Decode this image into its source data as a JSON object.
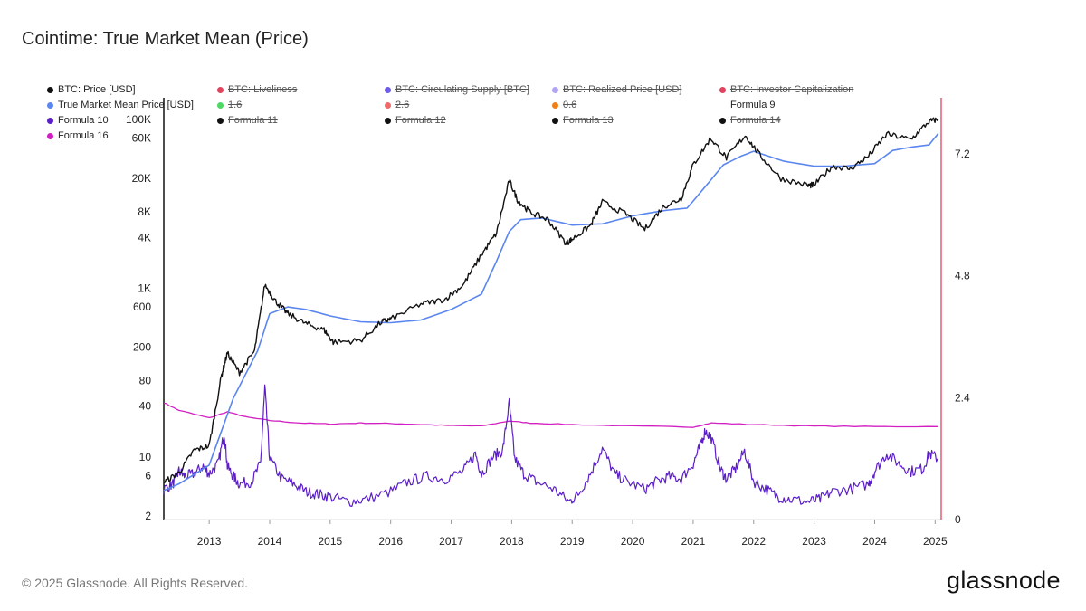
{
  "title": "Cointime: True Market Mean (Price)",
  "footer": {
    "copyright": "© 2025 Glassnode. All Rights Reserved.",
    "brand": "glassnode"
  },
  "legend": [
    {
      "label": "BTC: Price [USD]",
      "color": "#111111",
      "active": true
    },
    {
      "label": "BTC: Liveliness",
      "color": "#e0445e",
      "active": false
    },
    {
      "label": "BTC: Circulating Supply [BTC]",
      "color": "#6d5ce8",
      "active": false
    },
    {
      "label": "BTC: Realized Price [USD]",
      "color": "#b0a4f5",
      "active": false
    },
    {
      "label": "BTC: Investor Capitalization",
      "color": "#e0445e",
      "active": false
    },
    {
      "label": "True Market Mean Price [USD]",
      "color": "#5b86f0",
      "active": true
    },
    {
      "label": "1.6",
      "color": "#4cd964",
      "active": false
    },
    {
      "label": "2.6",
      "color": "#ef6b6b",
      "active": false
    },
    {
      "label": "0.6",
      "color": "#f07f1a",
      "active": false
    },
    {
      "label": "Formula 9",
      "color": "#ffffff",
      "active": true
    },
    {
      "label": "Formula 10",
      "color": "#5b1ec8",
      "active": true
    },
    {
      "label": "Formula 11",
      "color": "#111111",
      "active": false
    },
    {
      "label": "Formula 12",
      "color": "#111111",
      "active": false
    },
    {
      "label": "Formula 13",
      "color": "#111111",
      "active": false
    },
    {
      "label": "Formula 14",
      "color": "#111111",
      "active": false
    },
    {
      "label": "Formula 16",
      "color": "#d21fc2",
      "active": true
    }
  ],
  "chart_data": {
    "type": "line",
    "y_left": {
      "scale": "log",
      "ticks": [
        "2",
        "6",
        "10",
        "40",
        "80",
        "200",
        "600",
        "1K",
        "4K",
        "8K",
        "20K",
        "60K",
        "100K"
      ]
    },
    "y_right": {
      "scale": "linear",
      "ticks": [
        "0",
        "2.4",
        "4.8",
        "7.2"
      ],
      "range": [
        0,
        8.3
      ]
    },
    "x_ticks": [
      "2013",
      "2014",
      "2015",
      "2016",
      "2017",
      "2018",
      "2019",
      "2020",
      "2021",
      "2022",
      "2023",
      "2024",
      "2025"
    ],
    "x_range": [
      2012.25,
      2025.1
    ],
    "grid": false,
    "series": [
      {
        "name": "BTC: Price [USD]",
        "axis": "left",
        "color": "#111111",
        "x": [
          2012.25,
          2012.5,
          2012.75,
          2013.0,
          2013.2,
          2013.3,
          2013.5,
          2013.75,
          2013.92,
          2014.1,
          2014.3,
          2014.6,
          2014.9,
          2015.05,
          2015.5,
          2015.85,
          2016.0,
          2016.5,
          2016.9,
          2017.2,
          2017.5,
          2017.75,
          2017.96,
          2018.1,
          2018.3,
          2018.6,
          2018.9,
          2019.0,
          2019.3,
          2019.5,
          2019.9,
          2020.2,
          2020.5,
          2020.8,
          2021.0,
          2021.29,
          2021.55,
          2021.86,
          2022.1,
          2022.45,
          2022.9,
          2023.0,
          2023.3,
          2023.6,
          2023.9,
          2024.2,
          2024.6,
          2024.9,
          2025.05
        ],
        "y": [
          5,
          6.5,
          12,
          13.5,
          90,
          170,
          100,
          180,
          1100,
          700,
          500,
          380,
          320,
          230,
          240,
          400,
          430,
          650,
          740,
          1100,
          2500,
          4500,
          19000,
          11000,
          8000,
          6500,
          3400,
          3800,
          5500,
          10500,
          7500,
          5000,
          9200,
          11500,
          29000,
          60000,
          35000,
          65000,
          38000,
          20000,
          16500,
          16800,
          28000,
          26000,
          37000,
          67000,
          58000,
          95000,
          100000
        ]
      },
      {
        "name": "True Market Mean Price [USD]",
        "axis": "left",
        "color": "#5b86f0",
        "x": [
          2012.25,
          2012.5,
          2013.0,
          2013.4,
          2013.8,
          2014.0,
          2014.3,
          2014.6,
          2015.0,
          2015.5,
          2016.0,
          2016.5,
          2017.0,
          2017.5,
          2017.75,
          2017.96,
          2018.15,
          2018.5,
          2019.0,
          2019.5,
          2020.0,
          2020.5,
          2020.9,
          2021.2,
          2021.5,
          2021.8,
          2022.0,
          2022.5,
          2023.0,
          2023.5,
          2024.0,
          2024.3,
          2024.6,
          2024.9,
          2025.05
        ],
        "y": [
          4,
          4.8,
          8,
          50,
          180,
          500,
          600,
          560,
          470,
          400,
          390,
          420,
          560,
          850,
          2100,
          4700,
          6500,
          6800,
          5600,
          5800,
          7200,
          8300,
          8900,
          16000,
          29000,
          37000,
          42000,
          32000,
          28000,
          28000,
          30000,
          43000,
          47000,
          50000,
          68000
        ]
      },
      {
        "name": "Formula 10",
        "axis": "right",
        "color": "#5b1ec8",
        "x": [
          2012.25,
          2012.4,
          2012.5,
          2012.6,
          2012.75,
          2012.9,
          2013.0,
          2013.15,
          2013.25,
          2013.3,
          2013.4,
          2013.5,
          2013.7,
          2013.85,
          2013.92,
          2014.0,
          2014.2,
          2014.4,
          2014.6,
          2014.8,
          2015.0,
          2015.3,
          2015.6,
          2016.0,
          2016.3,
          2016.6,
          2016.9,
          2017.2,
          2017.4,
          2017.5,
          2017.7,
          2017.85,
          2017.96,
          2018.05,
          2018.2,
          2018.4,
          2018.7,
          2018.95,
          2019.1,
          2019.3,
          2019.5,
          2019.7,
          2019.9,
          2020.2,
          2020.4,
          2020.6,
          2020.8,
          2021.0,
          2021.1,
          2021.2,
          2021.3,
          2021.45,
          2021.55,
          2021.7,
          2021.85,
          2022.0,
          2022.2,
          2022.4,
          2022.6,
          2022.9,
          2023.1,
          2023.3,
          2023.6,
          2023.9,
          2024.0,
          2024.2,
          2024.4,
          2024.6,
          2024.8,
          2024.9,
          2025.05
        ],
        "y": [
          0.6,
          0.7,
          0.95,
          0.85,
          0.9,
          1.05,
          0.9,
          1.1,
          1.7,
          1.05,
          0.85,
          0.7,
          0.75,
          1.1,
          2.6,
          1.2,
          0.8,
          0.7,
          0.55,
          0.5,
          0.45,
          0.35,
          0.4,
          0.55,
          0.75,
          0.85,
          0.8,
          0.95,
          1.3,
          0.9,
          1.25,
          1.35,
          2.3,
          1.2,
          0.9,
          0.75,
          0.6,
          0.35,
          0.5,
          0.9,
          1.4,
          0.9,
          0.75,
          0.6,
          0.75,
          0.85,
          0.8,
          1.1,
          1.4,
          1.75,
          1.6,
          1.0,
          0.8,
          1.0,
          1.35,
          0.75,
          0.6,
          0.45,
          0.4,
          0.35,
          0.4,
          0.55,
          0.6,
          0.7,
          0.95,
          1.3,
          1.1,
          0.95,
          1.0,
          1.3,
          1.2
        ]
      },
      {
        "name": "Formula 16",
        "axis": "right",
        "color": "#d21fc2",
        "x": [
          2012.25,
          2012.5,
          2013.0,
          2013.3,
          2013.6,
          2014.0,
          2014.5,
          2015.0,
          2015.5,
          2016.0,
          2016.5,
          2017.0,
          2017.5,
          2017.96,
          2018.3,
          2019.0,
          2020.0,
          2021.0,
          2021.3,
          2022.0,
          2023.0,
          2024.0,
          2025.05
        ],
        "y": [
          2.3,
          2.15,
          2.0,
          2.12,
          2.02,
          1.95,
          1.9,
          1.88,
          1.9,
          1.89,
          1.87,
          1.85,
          1.84,
          1.94,
          1.9,
          1.87,
          1.84,
          1.82,
          1.9,
          1.87,
          1.84,
          1.83,
          1.83
        ]
      }
    ]
  }
}
